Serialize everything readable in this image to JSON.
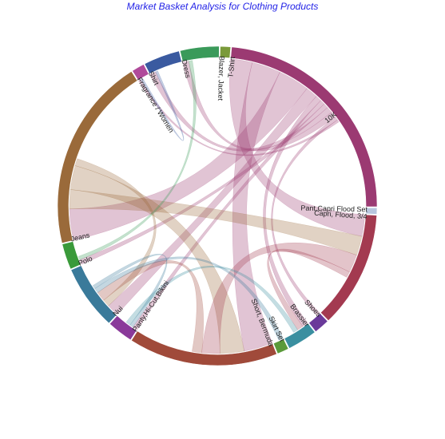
{
  "chart_data": {
    "type": "chord",
    "title": "Market Basket Analysis for Clothing Products",
    "groups": [
      {
        "name": "T-Shirt",
        "value": 18.0,
        "color": "#9b3a72"
      },
      {
        "name": "Pant,Capri Flood Set",
        "value": 0.5,
        "color": "#b8c6de"
      },
      {
        "name": "Capri, Flood, 3/4",
        "value": 9.0,
        "color": "#a33a50"
      },
      {
        "name": "Shoes",
        "value": 1.2,
        "color": "#6a3a9a"
      },
      {
        "name": "Brassier",
        "value": 2.3,
        "color": "#3a8fa0"
      },
      {
        "name": "Skirt Set",
        "value": 0.9,
        "color": "#5a9a3a"
      },
      {
        "name": "Short, Bermuda",
        "value": 11.5,
        "color": "#a04a3a"
      },
      {
        "name": "Panty,Hi-Cut,Bikini",
        "value": 2.0,
        "color": "#8a3a9a"
      },
      {
        "name": "Nui",
        "value": 5.0,
        "color": "#3a7a9a"
      },
      {
        "name": "Polo",
        "value": 2.0,
        "color": "#3a9a3a"
      },
      {
        "name": "Jeans",
        "value": 15.0,
        "color": "#9a6a3a"
      },
      {
        "name": "Fragrance / Women",
        "value": 1.0,
        "color": "#b04a9a"
      },
      {
        "name": "Shirt",
        "value": 2.8,
        "color": "#3a5aa0"
      },
      {
        "name": "Dress",
        "value": 3.0,
        "color": "#3a9a5a"
      },
      {
        "name": "Blazer, Jacket",
        "value": 0.8,
        "color": "#7a9a3a"
      }
    ],
    "labels": [
      {
        "text": "T-Shirt"
      },
      {
        "text": "Pant,Capri Flood Set"
      },
      {
        "text": "Capri, Flood, 3/4"
      },
      {
        "text": "Shoes"
      },
      {
        "text": "Brassier"
      },
      {
        "text": "Skirt Set"
      },
      {
        "text": "Short, Bermuda"
      },
      {
        "text": "Panty,Hi-Cut,Bikini"
      },
      {
        "text": "Nui"
      },
      {
        "text": "Polo"
      },
      {
        "text": "Jeans"
      },
      {
        "text": "Fragrance / Women"
      },
      {
        "text": "Shirt"
      },
      {
        "text": "Dress"
      },
      {
        "text": "Blazer, Jacket"
      }
    ],
    "ticks": [
      {
        "group": "T-Shirt",
        "text": "10K"
      }
    ],
    "ribbons": [
      {
        "source": "T-Shirt",
        "target": "Capri, Flood, 3/4",
        "value": 1.8
      },
      {
        "source": "T-Shirt",
        "target": "Short, Bermuda",
        "value": 2.4
      },
      {
        "source": "T-Shirt",
        "target": "Jeans",
        "value": 2.6
      },
      {
        "source": "T-Shirt",
        "target": "Nui",
        "value": 1.0
      },
      {
        "source": "T-Shirt",
        "target": "Brassier",
        "value": 0.5
      },
      {
        "source": "T-Shirt",
        "target": "Panty,Hi-Cut,Bikini",
        "value": 0.4
      },
      {
        "source": "T-Shirt",
        "target": "Polo",
        "value": 0.4
      },
      {
        "source": "T-Shirt",
        "target": "Shirt",
        "value": 0.5
      },
      {
        "source": "T-Shirt",
        "target": "Dress",
        "value": 0.5
      },
      {
        "source": "T-Shirt",
        "target": "Shoes",
        "value": 0.3
      },
      {
        "source": "T-Shirt",
        "target": "Fragrance / Women",
        "value": 0.2
      },
      {
        "source": "Jeans",
        "target": "Capri, Flood, 3/4",
        "value": 1.6
      },
      {
        "source": "Jeans",
        "target": "Short, Bermuda",
        "value": 2.0
      },
      {
        "source": "Jeans",
        "target": "Nui",
        "value": 0.6
      },
      {
        "source": "Capri, Flood, 3/4",
        "target": "Short, Bermuda",
        "value": 1.5
      },
      {
        "source": "Capri, Flood, 3/4",
        "target": "Brassier",
        "value": 0.5
      },
      {
        "source": "Short, Bermuda",
        "target": "Nui",
        "value": 0.8
      },
      {
        "source": "Nui",
        "target": "Skirt Set",
        "value": 0.4
      },
      {
        "source": "Nui",
        "target": "Panty,Hi-Cut,Bikini",
        "value": 0.3
      },
      {
        "source": "Dress",
        "target": "Polo",
        "value": 0.3
      },
      {
        "source": "Shirt",
        "target": "Fragrance / Women",
        "value": 0.2
      },
      {
        "source": "Brassier",
        "target": "Panty,Hi-Cut,Bikini",
        "value": 0.4
      }
    ]
  }
}
